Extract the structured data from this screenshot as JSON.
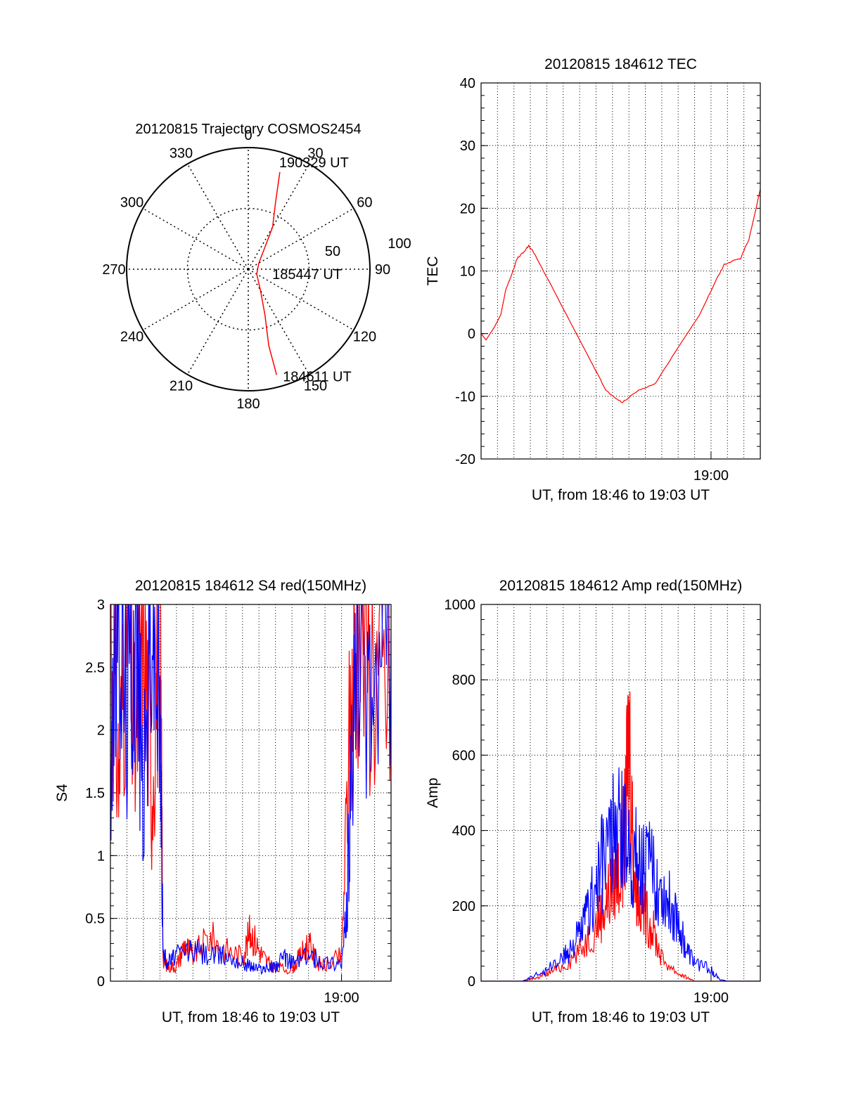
{
  "chart_data": [
    {
      "type": "polar",
      "title": "20120815 Trajectory COSMOS2454",
      "angle_labels": [
        "0",
        "30",
        "60",
        "90",
        "120",
        "150",
        "180",
        "210",
        "240",
        "270",
        "300",
        "330"
      ],
      "radial_labels": [
        "50",
        "100"
      ],
      "rlim": [
        0,
        100
      ],
      "grid": true,
      "series": [
        {
          "color": "#ff0000",
          "points": [
            {
              "azimuth": 18,
              "radius": 84
            },
            {
              "azimuth": 22,
              "radius": 60
            },
            {
              "azimuth": 30,
              "radius": 40
            },
            {
              "azimuth": 60,
              "radius": 10
            },
            {
              "azimuth": 120,
              "radius": 8
            },
            {
              "azimuth": 150,
              "radius": 20
            },
            {
              "azimuth": 160,
              "radius": 40
            },
            {
              "azimuth": 165,
              "radius": 65
            },
            {
              "azimuth": 165,
              "radius": 90
            }
          ]
        }
      ],
      "annotations": [
        {
          "text": "190329 UT",
          "azimuth": 16,
          "radius": 92
        },
        {
          "text": "185447 UT",
          "azimuth": 100,
          "radius": 20
        },
        {
          "text": "184611 UT",
          "azimuth": 162,
          "radius": 92
        }
      ]
    },
    {
      "type": "line",
      "title": "20120815 184612 TEC",
      "xlabel": "UT, from 18:46 to 19:03 UT",
      "ylabel": "TEC",
      "xlim": [
        0,
        17
      ],
      "ylim": [
        -20,
        40
      ],
      "x_ticks": [
        {
          "value": 14,
          "label": "19:00"
        }
      ],
      "y_ticks": [
        -20,
        -10,
        0,
        10,
        20,
        30,
        40
      ],
      "grid": true,
      "series": [
        {
          "color": "#ff0000",
          "x": [
            0,
            0.3,
            0.8,
            1.2,
            1.5,
            1.8,
            2.2,
            2.6,
            2.9,
            3.2,
            4.0,
            5.2,
            6.4,
            7.2,
            7.6,
            8.0,
            8.6,
            9.6,
            10.6,
            11.8,
            13.3,
            14.4,
            14.8,
            15.8,
            16.3,
            17.0
          ],
          "y": [
            0,
            -1,
            1,
            3,
            7,
            9,
            12,
            13,
            14,
            13,
            9,
            3,
            -3,
            -7,
            -9,
            -10,
            -11,
            -9,
            -8,
            -3,
            3,
            9,
            11,
            12,
            15,
            23
          ]
        }
      ]
    },
    {
      "type": "line",
      "title": "20120815 184612 S4 red(150MHz)",
      "xlabel": "UT, from 18:46 to 19:03 UT",
      "ylabel": "S4",
      "xlim": [
        0,
        17
      ],
      "ylim": [
        0,
        3
      ],
      "x_ticks": [
        {
          "value": 14,
          "label": "19:00"
        }
      ],
      "y_ticks": [
        "0",
        "0.5",
        "1",
        "1.5",
        "2",
        "2.5",
        "3"
      ],
      "grid": true,
      "series": [
        {
          "color": "#ff0000",
          "x": [
            0,
            0.5,
            1.0,
            1.5,
            2.0,
            2.5,
            3.0,
            3.2,
            3.5,
            4.0,
            4.5,
            5.0,
            6.0,
            7.0,
            8.0,
            8.5,
            9.0,
            9.5,
            10.0,
            11.0,
            11.5,
            12.0,
            12.5,
            13.0,
            14.0,
            14.5,
            15.0,
            16.0,
            17.0
          ],
          "y": [
            3,
            1.6,
            3,
            1.8,
            3,
            1.5,
            3,
            0.15,
            0.12,
            0.12,
            0.3,
            0.2,
            0.35,
            0.25,
            0.2,
            0.4,
            0.25,
            0.15,
            0.1,
            0.1,
            0.2,
            0.3,
            0.15,
            0.12,
            0.2,
            2.0,
            3,
            2.5,
            2.2
          ]
        },
        {
          "color": "#0000ff",
          "x": [
            0,
            0.5,
            1.0,
            1.5,
            2.0,
            2.5,
            3.0,
            3.2,
            3.5,
            4.0,
            5.0,
            6.0,
            7.0,
            8.0,
            8.5,
            9.0,
            9.5,
            10.0,
            10.5,
            11.0,
            12.0,
            13.0,
            14.0,
            14.3,
            14.6,
            15.0,
            16.0,
            17.0
          ],
          "y": [
            1.8,
            3,
            2.2,
            3,
            1.4,
            3,
            2.0,
            0.2,
            0.15,
            0.2,
            0.25,
            0.2,
            0.2,
            0.15,
            0.12,
            0.1,
            0.1,
            0.12,
            0.18,
            0.15,
            0.2,
            0.15,
            0.15,
            0.5,
            1.5,
            3,
            2.2,
            2.8
          ]
        }
      ]
    },
    {
      "type": "line",
      "title": "20120815 184612 Amp red(150MHz)",
      "xlabel": "UT, from 18:46 to 19:03 UT",
      "ylabel": "Amp",
      "xlim": [
        0,
        17
      ],
      "ylim": [
        0,
        1000
      ],
      "x_ticks": [
        {
          "value": 14,
          "label": "19:00"
        }
      ],
      "y_ticks": [
        0,
        200,
        400,
        600,
        800,
        1000
      ],
      "grid": true,
      "series": [
        {
          "color": "#ff0000",
          "x": [
            0,
            2.5,
            3.0,
            3.5,
            4.0,
            5.0,
            6.0,
            7.0,
            7.5,
            8.0,
            8.5,
            8.8,
            9.0,
            9.3,
            9.6,
            10.0,
            10.5,
            11.0,
            12.0,
            12.5,
            13.0,
            17.0
          ],
          "y": [
            0,
            0,
            5,
            10,
            20,
            40,
            80,
            150,
            200,
            250,
            300,
            420,
            680,
            300,
            220,
            180,
            130,
            60,
            20,
            10,
            0,
            0
          ]
        },
        {
          "color": "#0000ff",
          "x": [
            0,
            2.5,
            3.0,
            4.0,
            5.0,
            5.5,
            6.0,
            6.5,
            7.0,
            7.5,
            8.0,
            8.5,
            9.0,
            9.5,
            10.0,
            10.5,
            11.0,
            11.5,
            12.0,
            12.5,
            13.0,
            14.0,
            14.5,
            15.0,
            17.0
          ],
          "y": [
            0,
            0,
            10,
            30,
            60,
            90,
            120,
            180,
            250,
            330,
            380,
            400,
            360,
            330,
            310,
            280,
            240,
            200,
            160,
            80,
            50,
            30,
            5,
            0,
            0
          ]
        }
      ]
    }
  ]
}
